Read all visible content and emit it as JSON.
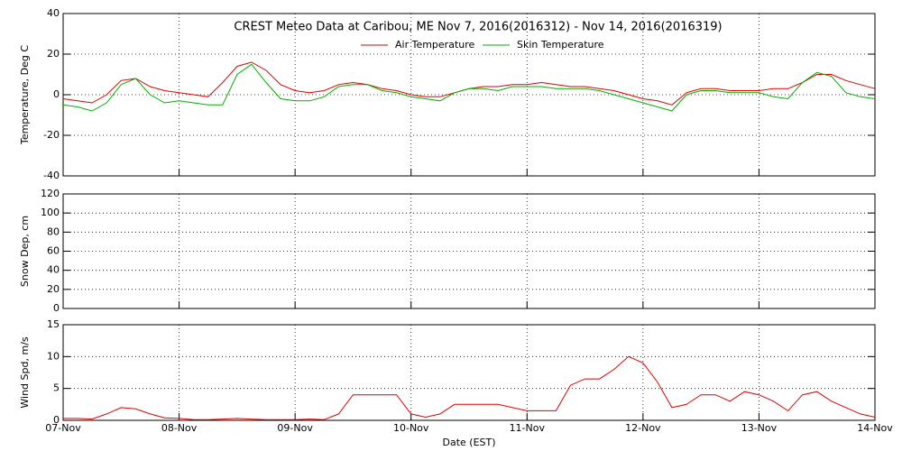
{
  "chart_data": [
    {
      "type": "line",
      "title": "CREST Meteo Data at Caribou, ME   Nov  7, 2016(2016312) - Nov 14, 2016(2016319)",
      "ylabel": "Temperature, Deg C",
      "xlim": [
        0,
        7
      ],
      "xticks": [
        0,
        1,
        2,
        3,
        4,
        5,
        6,
        7
      ],
      "ylim": [
        -40,
        40
      ],
      "yticks": [
        -40,
        -20,
        0,
        20,
        40
      ],
      "grid": true,
      "x": [
        0,
        0.125,
        0.25,
        0.375,
        0.5,
        0.625,
        0.75,
        0.875,
        1,
        1.125,
        1.25,
        1.375,
        1.5,
        1.625,
        1.75,
        1.875,
        2,
        2.125,
        2.25,
        2.375,
        2.5,
        2.625,
        2.75,
        2.875,
        3,
        3.125,
        3.25,
        3.375,
        3.5,
        3.625,
        3.75,
        3.875,
        4,
        4.125,
        4.25,
        4.375,
        4.5,
        4.625,
        4.75,
        4.875,
        5,
        5.125,
        5.25,
        5.375,
        5.5,
        5.625,
        5.75,
        5.875,
        6,
        6.125,
        6.25,
        6.375,
        6.5,
        6.625,
        6.75,
        6.875,
        7
      ],
      "series": [
        {
          "name": "Air Temperature",
          "color": "#e00000",
          "values": [
            -2,
            -3,
            -4,
            0,
            7,
            8,
            4,
            2,
            1,
            0,
            -1,
            6,
            14,
            16,
            12,
            5,
            2,
            1,
            2,
            5,
            6,
            5,
            3,
            2,
            0,
            -1,
            -1,
            1,
            3,
            4,
            4,
            5,
            5,
            6,
            5,
            4,
            4,
            3,
            2,
            0,
            -2,
            -3,
            -5,
            1,
            3,
            3,
            2,
            2,
            2,
            3,
            3,
            6,
            10,
            10,
            7,
            5,
            3
          ]
        },
        {
          "name": "Skin Temperature",
          "color": "#00b000",
          "values": [
            -5,
            -6,
            -8,
            -4,
            5,
            8,
            0,
            -4,
            -3,
            -4,
            -5,
            -5,
            10,
            15,
            6,
            -2,
            -3,
            -3,
            -1,
            4,
            5,
            5,
            2,
            1,
            -1,
            -2,
            -3,
            1,
            3,
            3,
            2,
            4,
            4,
            4,
            3,
            3,
            3,
            2,
            0,
            -2,
            -4,
            -6,
            -8,
            0,
            2,
            2,
            1,
            1,
            1,
            -1,
            -2,
            6,
            11,
            9,
            1,
            -1,
            -2
          ]
        }
      ]
    },
    {
      "type": "line",
      "ylabel": "Snow Dep, cm",
      "xlim": [
        0,
        7
      ],
      "xticks": [
        0,
        1,
        2,
        3,
        4,
        5,
        6,
        7
      ],
      "ylim": [
        0,
        120
      ],
      "yticks": [
        0,
        20,
        40,
        60,
        80,
        100,
        120
      ],
      "grid": true,
      "series": []
    },
    {
      "type": "line",
      "ylabel": "Wind Spd, m/s",
      "xlabel": "Date (EST)",
      "xlim": [
        0,
        7
      ],
      "xticks": [
        {
          "value": 0,
          "label": "07-Nov"
        },
        {
          "value": 1,
          "label": "08-Nov"
        },
        {
          "value": 2,
          "label": "09-Nov"
        },
        {
          "value": 3,
          "label": "10-Nov"
        },
        {
          "value": 4,
          "label": "11-Nov"
        },
        {
          "value": 5,
          "label": "12-Nov"
        },
        {
          "value": 6,
          "label": "13-Nov"
        },
        {
          "value": 7,
          "label": "14-Nov"
        }
      ],
      "ylim": [
        0,
        15
      ],
      "yticks": [
        0,
        5,
        10,
        15
      ],
      "grid": true,
      "x": [
        0,
        0.125,
        0.25,
        0.375,
        0.5,
        0.625,
        0.75,
        0.875,
        1,
        1.125,
        1.25,
        1.375,
        1.5,
        1.625,
        1.75,
        1.875,
        2,
        2.125,
        2.25,
        2.375,
        2.5,
        2.625,
        2.75,
        2.875,
        3,
        3.125,
        3.25,
        3.375,
        3.5,
        3.625,
        3.75,
        3.875,
        4,
        4.125,
        4.25,
        4.375,
        4.5,
        4.625,
        4.75,
        4.875,
        5,
        5.125,
        5.25,
        5.375,
        5.5,
        5.625,
        5.75,
        5.875,
        6,
        6.125,
        6.25,
        6.375,
        6.5,
        6.625,
        6.75,
        6.875,
        7
      ],
      "series": [
        {
          "color": "#e00000",
          "values": [
            0.3,
            0.3,
            0.2,
            1,
            2,
            1.8,
            1,
            0.4,
            0.3,
            0.1,
            0.1,
            0.2,
            0.3,
            0.2,
            0.1,
            0.1,
            0.1,
            0.2,
            0.1,
            1,
            4,
            4,
            4,
            4,
            1,
            0.5,
            1,
            2.5,
            2.5,
            2.5,
            2.5,
            2,
            1.5,
            1.5,
            1.5,
            5.5,
            6.5,
            6.5,
            8,
            10,
            9,
            6,
            2,
            2.5,
            4,
            4,
            3,
            4.5,
            4,
            3,
            1.5,
            4,
            4.5,
            3,
            2,
            1,
            0.5
          ]
        }
      ]
    }
  ]
}
